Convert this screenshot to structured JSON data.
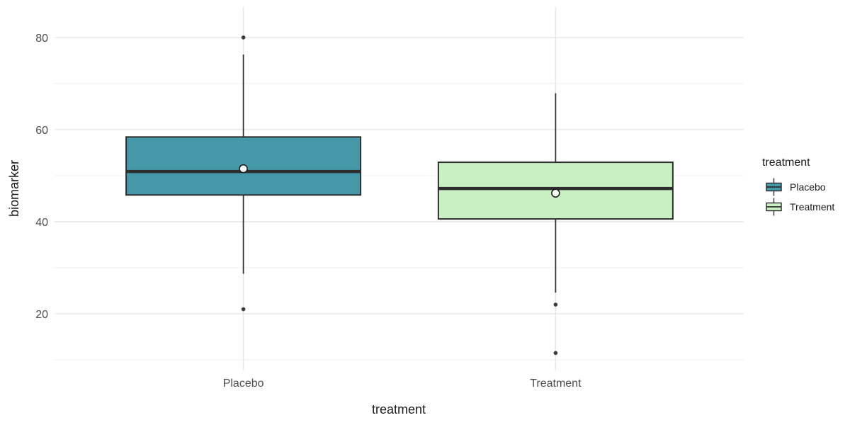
{
  "chart_data": {
    "type": "boxplot",
    "title": "",
    "xlabel": "treatment",
    "ylabel": "biomarker",
    "categories": [
      "Placebo",
      "Treatment"
    ],
    "ylim": [
      7.7,
      86.6
    ],
    "yticks": [
      20,
      40,
      60,
      80
    ],
    "yticks_minor": [
      10,
      30,
      50,
      70
    ],
    "grid": "horizontal major+minor, vertical major at categories",
    "legend": {
      "title": "treatment",
      "position": "right",
      "entries": [
        {
          "label": "Placebo",
          "fill": "#4598a8"
        },
        {
          "label": "Treatment",
          "fill": "#c8f0c2"
        }
      ]
    },
    "series": [
      {
        "name": "Placebo",
        "fill": "#4598a8",
        "whisker_low": 28.7,
        "q1": 45.8,
        "median": 50.9,
        "q3": 58.4,
        "whisker_high": 76.3,
        "mean": 51.5,
        "outliers": [
          80,
          21
        ]
      },
      {
        "name": "Treatment",
        "fill": "#c8f0c2",
        "whisker_low": 24.6,
        "q1": 40.6,
        "median": 47.2,
        "q3": 52.9,
        "whisker_high": 67.9,
        "mean": 46.2,
        "outliers": [
          22,
          11.5
        ]
      }
    ],
    "colors": {
      "box_border": "#2e2e2e",
      "median_line": "#2e2e2e",
      "outlier_point": "#3c3c3c",
      "mean_fill": "#ffffff",
      "mean_stroke": "#1f1f1f",
      "grid_major": "#e5e5e5",
      "grid_minor": "#eeeeee",
      "axis_text": "#4d4d4d",
      "axis_title": "#1a1a1a",
      "background": "#ffffff"
    }
  }
}
